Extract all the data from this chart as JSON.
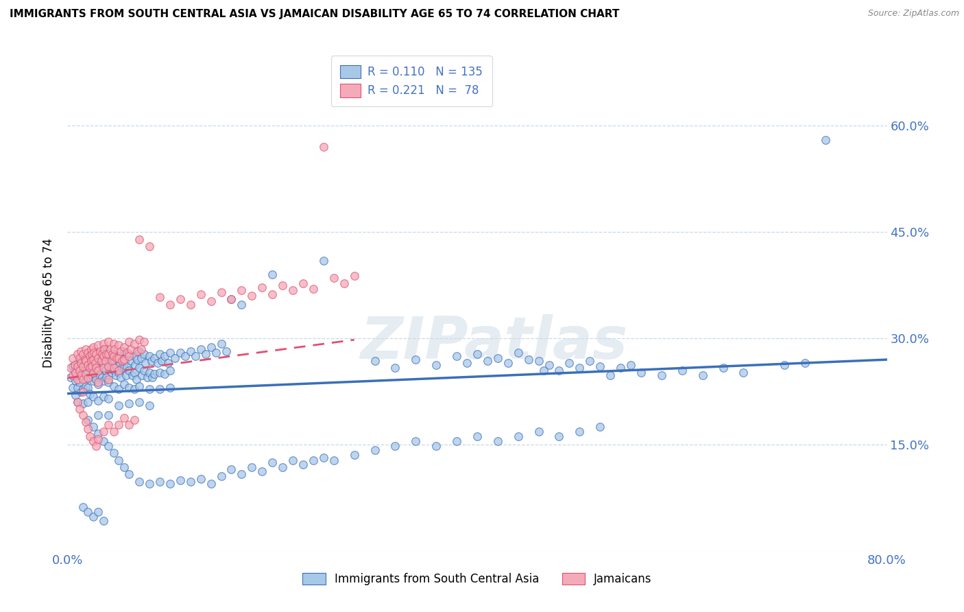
{
  "title": "IMMIGRANTS FROM SOUTH CENTRAL ASIA VS JAMAICAN DISABILITY AGE 65 TO 74 CORRELATION CHART",
  "source": "Source: ZipAtlas.com",
  "ylabel": "Disability Age 65 to 74",
  "xmin": 0.0,
  "xmax": 0.8,
  "ymin": 0.0,
  "ymax": 0.7,
  "yticks": [
    0.0,
    0.15,
    0.3,
    0.45,
    0.6
  ],
  "ytick_labels": [
    "",
    "15.0%",
    "30.0%",
    "45.0%",
    "60.0%"
  ],
  "xticks": [
    0.0,
    0.2,
    0.4,
    0.6,
    0.8
  ],
  "xtick_labels": [
    "0.0%",
    "",
    "",
    "",
    "80.0%"
  ],
  "legend_entries": [
    {
      "label": "Immigrants from South Central Asia",
      "color": "#a8c8e8",
      "R": 0.11,
      "N": 135
    },
    {
      "label": "Jamaicans",
      "color": "#f4aab8",
      "R": 0.221,
      "N": 78
    }
  ],
  "blue_color": "#3a6fba",
  "pink_color": "#e05070",
  "scatter_blue": "#a8c8e8",
  "scatter_pink": "#f4aab8",
  "watermark": "ZIPatlas",
  "blue_line": {
    "x0": 0.0,
    "y0": 0.222,
    "x1": 0.8,
    "y1": 0.27
  },
  "pink_line": {
    "x0": 0.0,
    "y0": 0.244,
    "x1": 0.28,
    "y1": 0.298
  },
  "blue_scatter": [
    [
      0.003,
      0.245
    ],
    [
      0.005,
      0.26
    ],
    [
      0.005,
      0.23
    ],
    [
      0.007,
      0.255
    ],
    [
      0.008,
      0.24
    ],
    [
      0.008,
      0.22
    ],
    [
      0.01,
      0.265
    ],
    [
      0.01,
      0.248
    ],
    [
      0.01,
      0.23
    ],
    [
      0.01,
      0.21
    ],
    [
      0.012,
      0.258
    ],
    [
      0.012,
      0.238
    ],
    [
      0.013,
      0.27
    ],
    [
      0.013,
      0.25
    ],
    [
      0.013,
      0.225
    ],
    [
      0.015,
      0.268
    ],
    [
      0.015,
      0.248
    ],
    [
      0.015,
      0.228
    ],
    [
      0.015,
      0.208
    ],
    [
      0.017,
      0.262
    ],
    [
      0.017,
      0.242
    ],
    [
      0.018,
      0.275
    ],
    [
      0.018,
      0.255
    ],
    [
      0.018,
      0.232
    ],
    [
      0.02,
      0.27
    ],
    [
      0.02,
      0.252
    ],
    [
      0.02,
      0.23
    ],
    [
      0.02,
      0.21
    ],
    [
      0.022,
      0.265
    ],
    [
      0.022,
      0.245
    ],
    [
      0.022,
      0.222
    ],
    [
      0.023,
      0.278
    ],
    [
      0.023,
      0.258
    ],
    [
      0.024,
      0.268
    ],
    [
      0.024,
      0.248
    ],
    [
      0.025,
      0.282
    ],
    [
      0.025,
      0.262
    ],
    [
      0.025,
      0.24
    ],
    [
      0.025,
      0.218
    ],
    [
      0.026,
      0.272
    ],
    [
      0.027,
      0.255
    ],
    [
      0.028,
      0.265
    ],
    [
      0.028,
      0.242
    ],
    [
      0.03,
      0.278
    ],
    [
      0.03,
      0.258
    ],
    [
      0.03,
      0.235
    ],
    [
      0.03,
      0.212
    ],
    [
      0.03,
      0.192
    ],
    [
      0.032,
      0.268
    ],
    [
      0.032,
      0.248
    ],
    [
      0.033,
      0.28
    ],
    [
      0.033,
      0.258
    ],
    [
      0.034,
      0.27
    ],
    [
      0.034,
      0.245
    ],
    [
      0.035,
      0.285
    ],
    [
      0.035,
      0.265
    ],
    [
      0.035,
      0.24
    ],
    [
      0.035,
      0.218
    ],
    [
      0.036,
      0.275
    ],
    [
      0.037,
      0.255
    ],
    [
      0.038,
      0.268
    ],
    [
      0.038,
      0.245
    ],
    [
      0.04,
      0.282
    ],
    [
      0.04,
      0.26
    ],
    [
      0.04,
      0.238
    ],
    [
      0.04,
      0.215
    ],
    [
      0.04,
      0.192
    ],
    [
      0.042,
      0.272
    ],
    [
      0.043,
      0.252
    ],
    [
      0.044,
      0.265
    ],
    [
      0.045,
      0.278
    ],
    [
      0.045,
      0.255
    ],
    [
      0.045,
      0.232
    ],
    [
      0.046,
      0.268
    ],
    [
      0.047,
      0.248
    ],
    [
      0.048,
      0.26
    ],
    [
      0.05,
      0.275
    ],
    [
      0.05,
      0.252
    ],
    [
      0.05,
      0.228
    ],
    [
      0.05,
      0.205
    ],
    [
      0.051,
      0.265
    ],
    [
      0.052,
      0.245
    ],
    [
      0.053,
      0.258
    ],
    [
      0.054,
      0.27
    ],
    [
      0.055,
      0.282
    ],
    [
      0.055,
      0.258
    ],
    [
      0.055,
      0.235
    ],
    [
      0.056,
      0.268
    ],
    [
      0.057,
      0.248
    ],
    [
      0.058,
      0.26
    ],
    [
      0.06,
      0.278
    ],
    [
      0.06,
      0.255
    ],
    [
      0.06,
      0.23
    ],
    [
      0.06,
      0.208
    ],
    [
      0.062,
      0.268
    ],
    [
      0.063,
      0.248
    ],
    [
      0.065,
      0.275
    ],
    [
      0.065,
      0.252
    ],
    [
      0.065,
      0.228
    ],
    [
      0.066,
      0.262
    ],
    [
      0.067,
      0.242
    ],
    [
      0.068,
      0.27
    ],
    [
      0.07,
      0.282
    ],
    [
      0.07,
      0.258
    ],
    [
      0.07,
      0.232
    ],
    [
      0.07,
      0.21
    ],
    [
      0.072,
      0.272
    ],
    [
      0.073,
      0.248
    ],
    [
      0.075,
      0.278
    ],
    [
      0.075,
      0.255
    ],
    [
      0.076,
      0.265
    ],
    [
      0.078,
      0.245
    ],
    [
      0.08,
      0.275
    ],
    [
      0.08,
      0.252
    ],
    [
      0.08,
      0.228
    ],
    [
      0.08,
      0.205
    ],
    [
      0.082,
      0.268
    ],
    [
      0.083,
      0.245
    ],
    [
      0.085,
      0.272
    ],
    [
      0.085,
      0.25
    ],
    [
      0.088,
      0.265
    ],
    [
      0.09,
      0.278
    ],
    [
      0.09,
      0.252
    ],
    [
      0.09,
      0.228
    ],
    [
      0.092,
      0.268
    ],
    [
      0.095,
      0.275
    ],
    [
      0.095,
      0.25
    ],
    [
      0.098,
      0.265
    ],
    [
      0.1,
      0.28
    ],
    [
      0.1,
      0.255
    ],
    [
      0.1,
      0.23
    ],
    [
      0.105,
      0.272
    ],
    [
      0.11,
      0.28
    ],
    [
      0.115,
      0.275
    ],
    [
      0.12,
      0.282
    ],
    [
      0.125,
      0.275
    ],
    [
      0.13,
      0.285
    ],
    [
      0.135,
      0.278
    ],
    [
      0.14,
      0.288
    ],
    [
      0.145,
      0.28
    ],
    [
      0.15,
      0.292
    ],
    [
      0.155,
      0.282
    ],
    [
      0.16,
      0.355
    ],
    [
      0.17,
      0.348
    ],
    [
      0.2,
      0.39
    ],
    [
      0.25,
      0.41
    ],
    [
      0.3,
      0.268
    ],
    [
      0.32,
      0.258
    ],
    [
      0.34,
      0.27
    ],
    [
      0.36,
      0.262
    ],
    [
      0.38,
      0.275
    ],
    [
      0.39,
      0.265
    ],
    [
      0.4,
      0.278
    ],
    [
      0.41,
      0.268
    ],
    [
      0.42,
      0.272
    ],
    [
      0.43,
      0.265
    ],
    [
      0.44,
      0.28
    ],
    [
      0.45,
      0.27
    ],
    [
      0.46,
      0.268
    ],
    [
      0.465,
      0.255
    ],
    [
      0.47,
      0.262
    ],
    [
      0.48,
      0.255
    ],
    [
      0.49,
      0.265
    ],
    [
      0.5,
      0.258
    ],
    [
      0.51,
      0.268
    ],
    [
      0.52,
      0.26
    ],
    [
      0.53,
      0.248
    ],
    [
      0.54,
      0.258
    ],
    [
      0.55,
      0.262
    ],
    [
      0.56,
      0.252
    ],
    [
      0.58,
      0.248
    ],
    [
      0.6,
      0.255
    ],
    [
      0.62,
      0.248
    ],
    [
      0.64,
      0.258
    ],
    [
      0.66,
      0.252
    ],
    [
      0.7,
      0.262
    ],
    [
      0.72,
      0.265
    ],
    [
      0.74,
      0.58
    ],
    [
      0.02,
      0.185
    ],
    [
      0.025,
      0.175
    ],
    [
      0.03,
      0.165
    ],
    [
      0.035,
      0.155
    ],
    [
      0.04,
      0.148
    ],
    [
      0.045,
      0.138
    ],
    [
      0.05,
      0.128
    ],
    [
      0.055,
      0.118
    ],
    [
      0.06,
      0.108
    ],
    [
      0.07,
      0.098
    ],
    [
      0.08,
      0.095
    ],
    [
      0.09,
      0.098
    ],
    [
      0.1,
      0.095
    ],
    [
      0.11,
      0.1
    ],
    [
      0.12,
      0.098
    ],
    [
      0.13,
      0.102
    ],
    [
      0.14,
      0.095
    ],
    [
      0.15,
      0.105
    ],
    [
      0.16,
      0.115
    ],
    [
      0.17,
      0.108
    ],
    [
      0.18,
      0.118
    ],
    [
      0.19,
      0.112
    ],
    [
      0.2,
      0.125
    ],
    [
      0.21,
      0.118
    ],
    [
      0.22,
      0.128
    ],
    [
      0.23,
      0.122
    ],
    [
      0.24,
      0.128
    ],
    [
      0.25,
      0.132
    ],
    [
      0.26,
      0.128
    ],
    [
      0.28,
      0.135
    ],
    [
      0.3,
      0.142
    ],
    [
      0.32,
      0.148
    ],
    [
      0.34,
      0.155
    ],
    [
      0.36,
      0.148
    ],
    [
      0.38,
      0.155
    ],
    [
      0.4,
      0.162
    ],
    [
      0.42,
      0.155
    ],
    [
      0.44,
      0.162
    ],
    [
      0.46,
      0.168
    ],
    [
      0.48,
      0.162
    ],
    [
      0.5,
      0.168
    ],
    [
      0.52,
      0.175
    ],
    [
      0.015,
      0.062
    ],
    [
      0.02,
      0.055
    ],
    [
      0.025,
      0.048
    ],
    [
      0.03,
      0.055
    ],
    [
      0.035,
      0.042
    ]
  ],
  "pink_scatter": [
    [
      0.003,
      0.258
    ],
    [
      0.005,
      0.272
    ],
    [
      0.005,
      0.248
    ],
    [
      0.007,
      0.262
    ],
    [
      0.008,
      0.252
    ],
    [
      0.01,
      0.278
    ],
    [
      0.01,
      0.26
    ],
    [
      0.01,
      0.242
    ],
    [
      0.012,
      0.272
    ],
    [
      0.012,
      0.255
    ],
    [
      0.013,
      0.282
    ],
    [
      0.013,
      0.265
    ],
    [
      0.013,
      0.248
    ],
    [
      0.015,
      0.278
    ],
    [
      0.015,
      0.26
    ],
    [
      0.015,
      0.242
    ],
    [
      0.015,
      0.225
    ],
    [
      0.017,
      0.27
    ],
    [
      0.018,
      0.285
    ],
    [
      0.018,
      0.268
    ],
    [
      0.018,
      0.25
    ],
    [
      0.02,
      0.28
    ],
    [
      0.02,
      0.262
    ],
    [
      0.02,
      0.244
    ],
    [
      0.022,
      0.275
    ],
    [
      0.022,
      0.258
    ],
    [
      0.023,
      0.285
    ],
    [
      0.023,
      0.268
    ],
    [
      0.024,
      0.278
    ],
    [
      0.024,
      0.26
    ],
    [
      0.025,
      0.288
    ],
    [
      0.025,
      0.27
    ],
    [
      0.025,
      0.252
    ],
    [
      0.026,
      0.28
    ],
    [
      0.027,
      0.265
    ],
    [
      0.028,
      0.278
    ],
    [
      0.028,
      0.258
    ],
    [
      0.03,
      0.29
    ],
    [
      0.03,
      0.272
    ],
    [
      0.03,
      0.255
    ],
    [
      0.03,
      0.238
    ],
    [
      0.032,
      0.282
    ],
    [
      0.033,
      0.268
    ],
    [
      0.034,
      0.278
    ],
    [
      0.035,
      0.292
    ],
    [
      0.035,
      0.275
    ],
    [
      0.035,
      0.258
    ],
    [
      0.036,
      0.285
    ],
    [
      0.037,
      0.268
    ],
    [
      0.038,
      0.278
    ],
    [
      0.04,
      0.295
    ],
    [
      0.04,
      0.278
    ],
    [
      0.04,
      0.26
    ],
    [
      0.04,
      0.242
    ],
    [
      0.042,
      0.285
    ],
    [
      0.043,
      0.268
    ],
    [
      0.044,
      0.278
    ],
    [
      0.045,
      0.292
    ],
    [
      0.045,
      0.275
    ],
    [
      0.045,
      0.258
    ],
    [
      0.046,
      0.285
    ],
    [
      0.048,
      0.272
    ],
    [
      0.05,
      0.29
    ],
    [
      0.05,
      0.272
    ],
    [
      0.05,
      0.255
    ],
    [
      0.052,
      0.282
    ],
    [
      0.053,
      0.268
    ],
    [
      0.055,
      0.288
    ],
    [
      0.055,
      0.27
    ],
    [
      0.058,
      0.28
    ],
    [
      0.06,
      0.295
    ],
    [
      0.06,
      0.275
    ],
    [
      0.062,
      0.285
    ],
    [
      0.065,
      0.292
    ],
    [
      0.068,
      0.282
    ],
    [
      0.07,
      0.298
    ],
    [
      0.072,
      0.285
    ],
    [
      0.075,
      0.295
    ],
    [
      0.25,
      0.57
    ],
    [
      0.01,
      0.21
    ],
    [
      0.012,
      0.2
    ],
    [
      0.015,
      0.192
    ],
    [
      0.018,
      0.182
    ],
    [
      0.02,
      0.172
    ],
    [
      0.022,
      0.162
    ],
    [
      0.025,
      0.155
    ],
    [
      0.028,
      0.148
    ],
    [
      0.03,
      0.158
    ],
    [
      0.035,
      0.168
    ],
    [
      0.04,
      0.178
    ],
    [
      0.045,
      0.168
    ],
    [
      0.05,
      0.178
    ],
    [
      0.055,
      0.188
    ],
    [
      0.06,
      0.178
    ],
    [
      0.065,
      0.185
    ],
    [
      0.07,
      0.44
    ],
    [
      0.08,
      0.43
    ],
    [
      0.09,
      0.358
    ],
    [
      0.1,
      0.348
    ],
    [
      0.11,
      0.355
    ],
    [
      0.12,
      0.348
    ],
    [
      0.13,
      0.362
    ],
    [
      0.14,
      0.352
    ],
    [
      0.15,
      0.365
    ],
    [
      0.16,
      0.355
    ],
    [
      0.17,
      0.368
    ],
    [
      0.18,
      0.36
    ],
    [
      0.19,
      0.372
    ],
    [
      0.2,
      0.362
    ],
    [
      0.21,
      0.375
    ],
    [
      0.22,
      0.368
    ],
    [
      0.23,
      0.378
    ],
    [
      0.24,
      0.37
    ],
    [
      0.26,
      0.385
    ],
    [
      0.27,
      0.378
    ],
    [
      0.28,
      0.388
    ]
  ]
}
